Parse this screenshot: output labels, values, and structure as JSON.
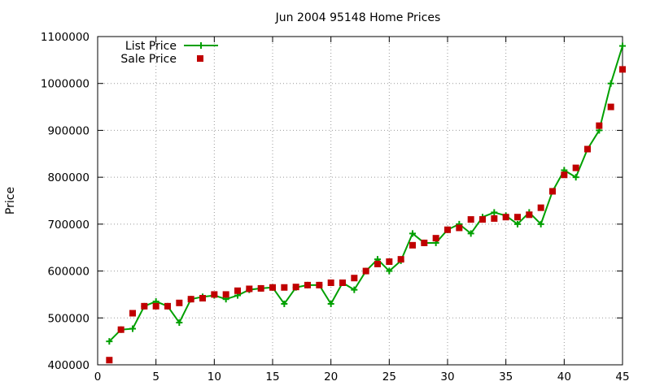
{
  "chart_data": {
    "type": "line",
    "title": "Jun 2004 95148 Home Prices",
    "xlabel": "",
    "ylabel": "Price",
    "xlim": [
      0,
      45
    ],
    "ylim": [
      400000,
      1100000
    ],
    "x_ticks": [
      0,
      5,
      10,
      15,
      20,
      25,
      30,
      35,
      40,
      45
    ],
    "y_ticks": [
      400000,
      500000,
      600000,
      700000,
      800000,
      900000,
      1000000,
      1100000
    ],
    "grid": true,
    "legend_position": "top-left",
    "series": [
      {
        "name": "List Price",
        "style": "line+cross",
        "color": "#00a000",
        "x": [
          1,
          2,
          3,
          4,
          5,
          6,
          7,
          8,
          9,
          10,
          11,
          12,
          13,
          14,
          15,
          16,
          17,
          18,
          19,
          20,
          21,
          22,
          23,
          24,
          25,
          26,
          27,
          28,
          29,
          30,
          31,
          32,
          33,
          34,
          35,
          36,
          37,
          38,
          39,
          40,
          41,
          42,
          43,
          44,
          45
        ],
        "y": [
          450000,
          475000,
          477000,
          525000,
          535000,
          525000,
          490000,
          540000,
          545000,
          548000,
          540000,
          548000,
          560000,
          563000,
          565000,
          530000,
          565000,
          570000,
          570000,
          530000,
          575000,
          560000,
          600000,
          625000,
          600000,
          622000,
          680000,
          660000,
          660000,
          688000,
          700000,
          680000,
          715000,
          725000,
          718000,
          700000,
          725000,
          700000,
          770000,
          815000,
          800000,
          860000,
          900000,
          1000000,
          1080000
        ]
      },
      {
        "name": "Sale Price",
        "style": "square",
        "color": "#c00000",
        "x": [
          1,
          2,
          3,
          4,
          5,
          6,
          7,
          8,
          9,
          10,
          11,
          12,
          13,
          14,
          15,
          16,
          17,
          18,
          19,
          20,
          21,
          22,
          23,
          24,
          25,
          26,
          27,
          28,
          29,
          30,
          31,
          32,
          33,
          34,
          35,
          36,
          37,
          38,
          39,
          40,
          41,
          42,
          43,
          44,
          45
        ],
        "y": [
          410000,
          475000,
          510000,
          525000,
          525000,
          525000,
          532000,
          540000,
          542000,
          550000,
          550000,
          558000,
          562000,
          563000,
          565000,
          565000,
          566000,
          570000,
          570000,
          575000,
          575000,
          585000,
          600000,
          615000,
          620000,
          625000,
          655000,
          660000,
          670000,
          688000,
          692000,
          710000,
          710000,
          712000,
          715000,
          715000,
          720000,
          735000,
          770000,
          805000,
          820000,
          860000,
          910000,
          950000,
          1030000
        ]
      }
    ]
  }
}
